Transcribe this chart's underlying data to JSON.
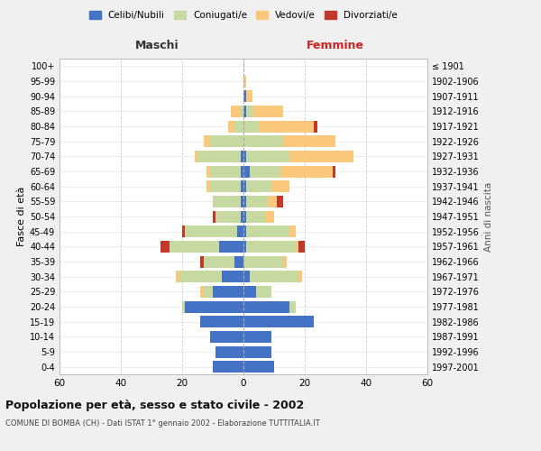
{
  "age_groups": [
    "0-4",
    "5-9",
    "10-14",
    "15-19",
    "20-24",
    "25-29",
    "30-34",
    "35-39",
    "40-44",
    "45-49",
    "50-54",
    "55-59",
    "60-64",
    "65-69",
    "70-74",
    "75-79",
    "80-84",
    "85-89",
    "90-94",
    "95-99",
    "100+"
  ],
  "birth_years": [
    "1997-2001",
    "1992-1996",
    "1987-1991",
    "1982-1986",
    "1977-1981",
    "1972-1976",
    "1967-1971",
    "1962-1966",
    "1957-1961",
    "1952-1956",
    "1947-1951",
    "1942-1946",
    "1937-1941",
    "1932-1936",
    "1927-1931",
    "1922-1926",
    "1917-1921",
    "1912-1916",
    "1907-1911",
    "1902-1906",
    "≤ 1901"
  ],
  "male": {
    "celibi": [
      10,
      9,
      11,
      14,
      19,
      10,
      7,
      3,
      8,
      2,
      1,
      1,
      1,
      1,
      1,
      0,
      0,
      0,
      0,
      0,
      0
    ],
    "coniugati": [
      0,
      0,
      0,
      0,
      1,
      3,
      14,
      10,
      16,
      17,
      8,
      9,
      10,
      10,
      14,
      11,
      3,
      1,
      0,
      0,
      0
    ],
    "vedovi": [
      0,
      0,
      0,
      0,
      0,
      1,
      1,
      0,
      0,
      0,
      0,
      0,
      1,
      1,
      1,
      2,
      2,
      3,
      0,
      0,
      0
    ],
    "divorziati": [
      0,
      0,
      0,
      0,
      0,
      0,
      0,
      1,
      3,
      1,
      1,
      0,
      0,
      0,
      0,
      0,
      0,
      0,
      0,
      0,
      0
    ]
  },
  "female": {
    "nubili": [
      10,
      9,
      9,
      23,
      15,
      4,
      2,
      0,
      1,
      1,
      1,
      1,
      1,
      2,
      1,
      0,
      0,
      1,
      1,
      0,
      0
    ],
    "coniugate": [
      0,
      0,
      0,
      0,
      2,
      5,
      16,
      13,
      16,
      14,
      6,
      7,
      8,
      10,
      14,
      13,
      5,
      2,
      0,
      0,
      0
    ],
    "vedove": [
      0,
      0,
      0,
      0,
      0,
      0,
      1,
      1,
      1,
      2,
      3,
      3,
      6,
      17,
      21,
      17,
      18,
      10,
      2,
      1,
      0
    ],
    "divorziate": [
      0,
      0,
      0,
      0,
      0,
      0,
      0,
      0,
      2,
      0,
      0,
      2,
      0,
      1,
      0,
      0,
      1,
      0,
      0,
      0,
      0
    ]
  },
  "colors": {
    "celibi": "#4472c4",
    "coniugati": "#c5d9a0",
    "vedovi": "#f9c87a",
    "divorziati": "#c0392b"
  },
  "legend_labels": [
    "Celibi/Nubili",
    "Coniugati/e",
    "Vedovi/e",
    "Divorziati/e"
  ],
  "title": "Popolazione per età, sesso e stato civile - 2002",
  "subtitle": "COMUNE DI BOMBA (CH) - Dati ISTAT 1° gennaio 2002 - Elaborazione TUTTITALIA.IT",
  "xlabel_left": "Maschi",
  "xlabel_right": "Femmine",
  "ylabel": "Fasce di età",
  "ylabel_right": "Anni di nascita",
  "xlim": 60,
  "bg_color": "#f0f0f0",
  "plot_bg": "#ffffff"
}
